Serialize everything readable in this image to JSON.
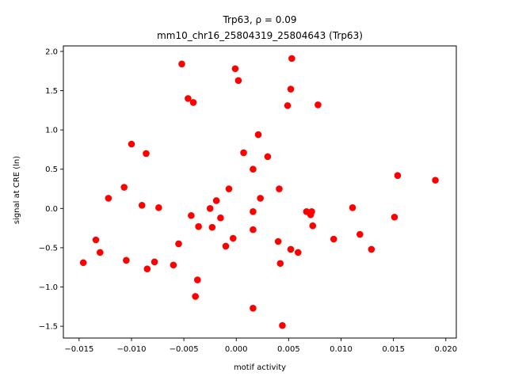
{
  "chart_data": {
    "type": "scatter",
    "title_line1": "Trp63, ρ = 0.09",
    "title_line2": "mm10_chr16_25804319_25804643 (Trp63)",
    "xlabel": "motif activity",
    "ylabel": "signal at CRE (ln)",
    "xlim": [
      -0.0165,
      0.021
    ],
    "ylim": [
      -1.65,
      2.07
    ],
    "xticks": [
      -0.015,
      -0.01,
      -0.005,
      0.0,
      0.005,
      0.01,
      0.015,
      0.02
    ],
    "xtick_labels": [
      "−0.015",
      "−0.010",
      "−0.005",
      "0.000",
      "0.005",
      "0.010",
      "0.015",
      "0.020"
    ],
    "yticks": [
      -1.5,
      -1.0,
      -0.5,
      0.0,
      0.5,
      1.0,
      1.5,
      2.0
    ],
    "ytick_labels": [
      "−1.5",
      "−1.0",
      "−0.5",
      "0.0",
      "0.5",
      "1.0",
      "1.5",
      "2.0"
    ],
    "grid": false,
    "marker_color": "#ff0000",
    "points": [
      {
        "x": -0.0146,
        "y": -0.69
      },
      {
        "x": -0.0134,
        "y": -0.4
      },
      {
        "x": -0.013,
        "y": -0.56
      },
      {
        "x": -0.0122,
        "y": 0.13
      },
      {
        "x": -0.0107,
        "y": 0.27
      },
      {
        "x": -0.0105,
        "y": -0.66
      },
      {
        "x": -0.01,
        "y": 0.82
      },
      {
        "x": -0.009,
        "y": 0.04
      },
      {
        "x": -0.0086,
        "y": 0.7
      },
      {
        "x": -0.0085,
        "y": -0.77
      },
      {
        "x": -0.0078,
        "y": -0.68
      },
      {
        "x": -0.0074,
        "y": 0.01
      },
      {
        "x": -0.006,
        "y": -0.72
      },
      {
        "x": -0.0055,
        "y": -0.45
      },
      {
        "x": -0.0052,
        "y": 1.84
      },
      {
        "x": -0.0046,
        "y": 1.4
      },
      {
        "x": -0.0043,
        "y": -0.09
      },
      {
        "x": -0.0041,
        "y": 1.35
      },
      {
        "x": -0.0039,
        "y": -1.12
      },
      {
        "x": -0.0037,
        "y": -0.91
      },
      {
        "x": -0.0036,
        "y": -0.23
      },
      {
        "x": -0.0025,
        "y": 0.0
      },
      {
        "x": -0.0023,
        "y": -0.24
      },
      {
        "x": -0.0019,
        "y": 0.1
      },
      {
        "x": -0.0015,
        "y": -0.12
      },
      {
        "x": -0.001,
        "y": -0.48
      },
      {
        "x": -0.0007,
        "y": 0.25
      },
      {
        "x": -0.0003,
        "y": -0.38
      },
      {
        "x": -0.0001,
        "y": 1.78
      },
      {
        "x": 0.0002,
        "y": 1.63
      },
      {
        "x": 0.0007,
        "y": 0.71
      },
      {
        "x": 0.0016,
        "y": 0.5
      },
      {
        "x": 0.0016,
        "y": -0.04
      },
      {
        "x": 0.0016,
        "y": -0.27
      },
      {
        "x": 0.0016,
        "y": -1.27
      },
      {
        "x": 0.0021,
        "y": 0.94
      },
      {
        "x": 0.0023,
        "y": 0.13
      },
      {
        "x": 0.003,
        "y": 0.66
      },
      {
        "x": 0.004,
        "y": -0.42
      },
      {
        "x": 0.0041,
        "y": 0.25
      },
      {
        "x": 0.0042,
        "y": -0.7
      },
      {
        "x": 0.0044,
        "y": -1.49
      },
      {
        "x": 0.0049,
        "y": 1.31
      },
      {
        "x": 0.0052,
        "y": 1.52
      },
      {
        "x": 0.0052,
        "y": -0.52
      },
      {
        "x": 0.0053,
        "y": 1.91
      },
      {
        "x": 0.0059,
        "y": -0.56
      },
      {
        "x": 0.0067,
        "y": -0.04
      },
      {
        "x": 0.0071,
        "y": -0.08
      },
      {
        "x": 0.0072,
        "y": -0.04
      },
      {
        "x": 0.0073,
        "y": -0.22
      },
      {
        "x": 0.0078,
        "y": 1.32
      },
      {
        "x": 0.0093,
        "y": -0.39
      },
      {
        "x": 0.0111,
        "y": 0.01
      },
      {
        "x": 0.0118,
        "y": -0.33
      },
      {
        "x": 0.0129,
        "y": -0.52
      },
      {
        "x": 0.0151,
        "y": -0.11
      },
      {
        "x": 0.0154,
        "y": 0.42
      },
      {
        "x": 0.019,
        "y": 0.36
      }
    ]
  }
}
